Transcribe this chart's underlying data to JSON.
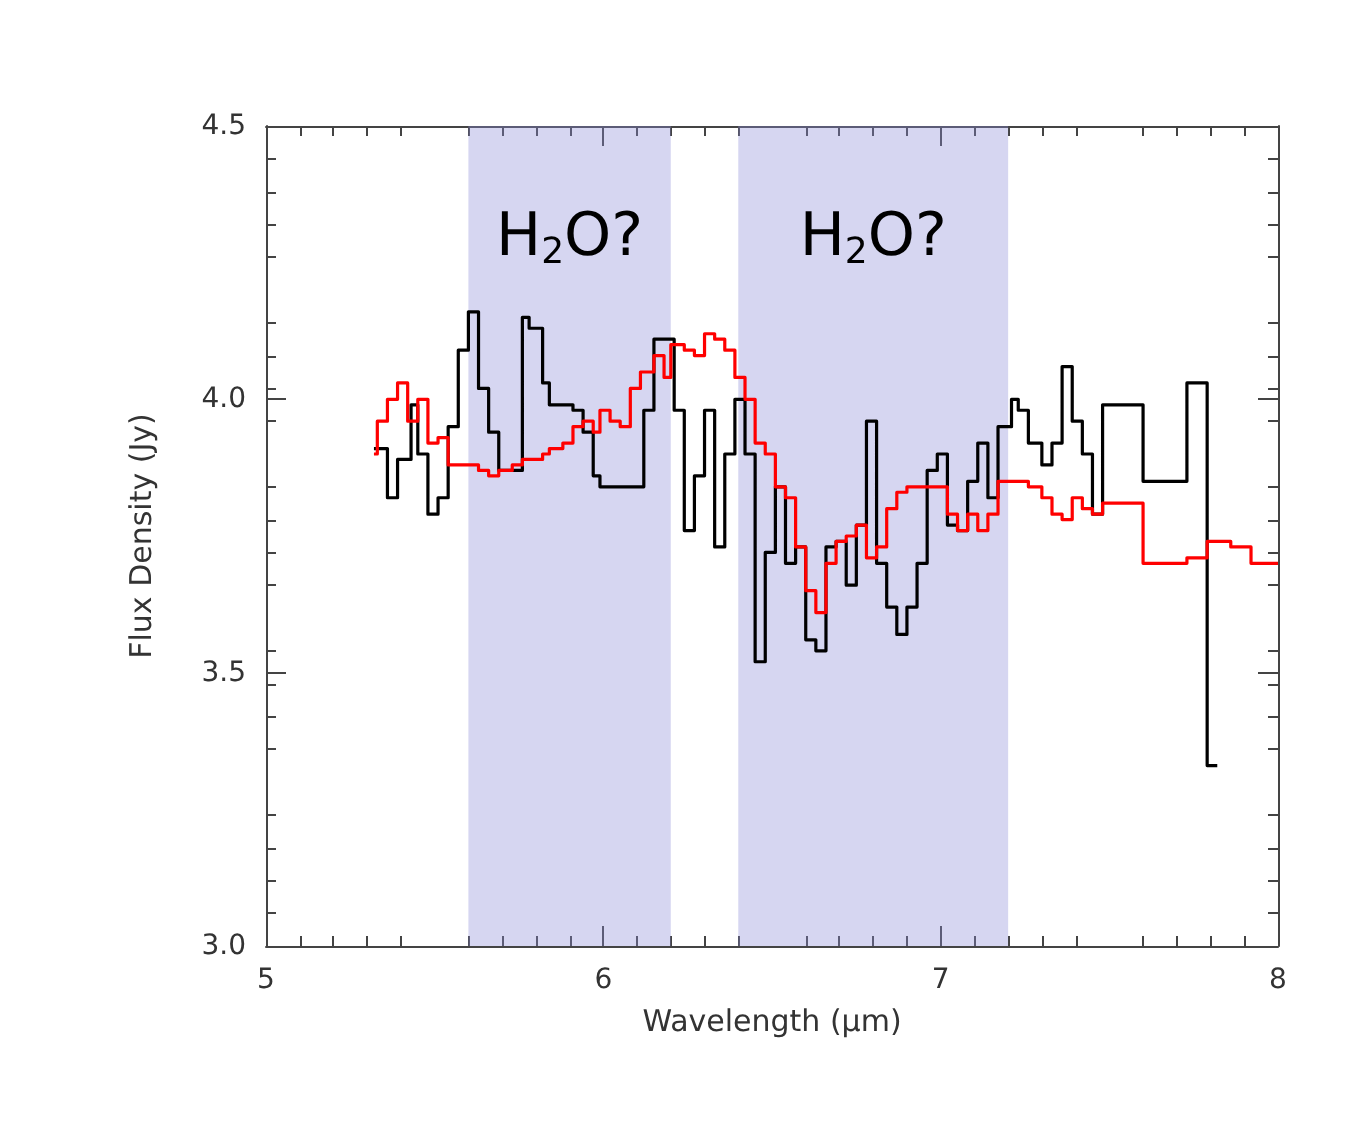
{
  "chart_data": {
    "type": "step",
    "xlabel": "Wavelength (μm)",
    "ylabel": "Flux Density (Jy)",
    "xlim": [
      5,
      8
    ],
    "xticks": [
      5,
      6,
      7,
      8
    ],
    "ylim": [
      3.0,
      4.5
    ],
    "yticks": [
      {
        "value": 3.0,
        "label": "3.0"
      },
      {
        "value": 3.5,
        "label": "3.5"
      },
      {
        "value": 4.0,
        "label": "4.0"
      },
      {
        "value": 4.5,
        "label": "4.5"
      }
    ],
    "grid": false,
    "line_style": "solid",
    "marker": "none",
    "bands": [
      {
        "axis": "x",
        "from": 5.6,
        "to": 6.2,
        "color": "#8a8ad6",
        "label": "H$_{2}$O?"
      },
      {
        "axis": "x",
        "from": 6.4,
        "to": 7.2,
        "color": "#8a8ad6",
        "label": "H$_{2}$O?"
      }
    ],
    "series": [
      {
        "color": "#000000",
        "x": [
          5.32,
          5.36,
          5.39,
          5.43,
          5.45,
          5.48,
          5.51,
          5.54,
          5.57,
          5.6,
          5.63,
          5.66,
          5.69,
          5.76,
          5.78,
          5.82,
          5.84,
          5.91,
          5.94,
          5.97,
          5.99,
          6.12,
          6.15,
          6.21,
          6.24,
          6.27,
          6.3,
          6.33,
          6.36,
          6.39,
          6.42,
          6.45,
          6.48,
          6.51,
          6.54,
          6.57,
          6.6,
          6.63,
          6.66,
          6.69,
          6.72,
          6.75,
          6.78,
          6.81,
          6.84,
          6.87,
          6.9,
          6.93,
          6.96,
          6.99,
          7.02,
          7.05,
          7.08,
          7.11,
          7.14,
          7.17,
          7.21,
          7.23,
          7.26,
          7.3,
          7.33,
          7.36,
          7.39,
          7.42,
          7.45,
          7.48,
          7.6,
          7.73,
          7.79,
          7.82
        ],
        "values": [
          3.91,
          3.82,
          3.89,
          3.99,
          3.9,
          3.79,
          3.82,
          3.95,
          4.09,
          4.16,
          4.02,
          3.94,
          3.87,
          4.15,
          4.13,
          4.03,
          3.99,
          3.98,
          3.94,
          3.86,
          3.84,
          3.98,
          4.11,
          3.98,
          3.76,
          3.86,
          3.98,
          3.73,
          3.9,
          4.0,
          3.9,
          3.52,
          3.72,
          3.84,
          3.7,
          3.73,
          3.56,
          3.54,
          3.73,
          3.74,
          3.66,
          3.77,
          3.96,
          3.7,
          3.62,
          3.57,
          3.62,
          3.7,
          3.87,
          3.9,
          3.77,
          3.76,
          3.85,
          3.92,
          3.82,
          3.95,
          4.0,
          3.98,
          3.92,
          3.88,
          3.92,
          4.06,
          3.96,
          3.9,
          3.79,
          3.99,
          3.85,
          4.03,
          3.33,
          3.33
        ]
      },
      {
        "color": "#ff0000",
        "x": [
          5.32,
          5.33,
          5.36,
          5.39,
          5.42,
          5.45,
          5.48,
          5.51,
          5.54,
          5.6,
          5.63,
          5.66,
          5.69,
          5.73,
          5.76,
          5.82,
          5.84,
          5.88,
          5.91,
          5.94,
          5.97,
          5.99,
          6.02,
          6.05,
          6.08,
          6.11,
          6.15,
          6.18,
          6.2,
          6.24,
          6.27,
          6.3,
          6.33,
          6.36,
          6.39,
          6.42,
          6.45,
          6.48,
          6.51,
          6.54,
          6.57,
          6.6,
          6.63,
          6.66,
          6.69,
          6.72,
          6.75,
          6.78,
          6.81,
          6.84,
          6.87,
          6.9,
          6.99,
          7.02,
          7.05,
          7.08,
          7.11,
          7.14,
          7.17,
          7.26,
          7.3,
          7.33,
          7.36,
          7.39,
          7.42,
          7.45,
          7.48,
          7.6,
          7.73,
          7.79,
          7.86,
          7.92,
          8.0
        ],
        "values": [
          3.9,
          3.96,
          4.0,
          4.03,
          3.96,
          4.0,
          3.92,
          3.93,
          3.88,
          3.88,
          3.87,
          3.86,
          3.87,
          3.88,
          3.89,
          3.9,
          3.91,
          3.92,
          3.95,
          3.96,
          3.94,
          3.98,
          3.96,
          3.95,
          4.02,
          4.05,
          4.08,
          4.04,
          4.1,
          4.09,
          4.08,
          4.12,
          4.11,
          4.09,
          4.04,
          4.0,
          3.92,
          3.9,
          3.84,
          3.82,
          3.73,
          3.65,
          3.61,
          3.7,
          3.74,
          3.75,
          3.77,
          3.71,
          3.73,
          3.8,
          3.83,
          3.84,
          3.84,
          3.79,
          3.76,
          3.79,
          3.76,
          3.79,
          3.85,
          3.84,
          3.82,
          3.79,
          3.78,
          3.82,
          3.8,
          3.79,
          3.81,
          3.7,
          3.71,
          3.74,
          3.73,
          3.7,
          3.7
        ]
      }
    ]
  }
}
